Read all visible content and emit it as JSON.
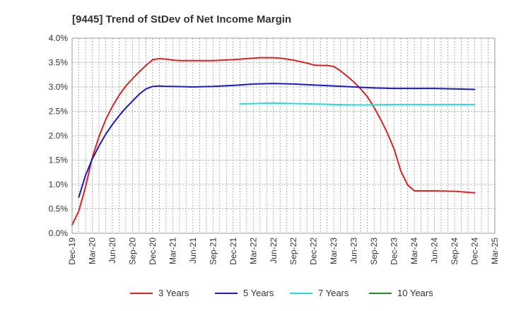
{
  "chart_data": {
    "type": "line",
    "title": "[9445]  Trend of StDev of Net Income Margin",
    "xlabel": "",
    "ylabel": "",
    "x_ticks": [
      "Dec-19",
      "Mar-20",
      "Jun-20",
      "Sep-20",
      "Dec-20",
      "Mar-21",
      "Jun-21",
      "Sep-21",
      "Dec-21",
      "Mar-22",
      "Jun-22",
      "Sep-22",
      "Dec-22",
      "Mar-23",
      "Jun-23",
      "Sep-23",
      "Dec-23",
      "Mar-24",
      "Jun-24",
      "Sep-24",
      "Dec-24",
      "Mar-25"
    ],
    "y_ticks": [
      "0.0%",
      "0.5%",
      "1.0%",
      "1.5%",
      "2.0%",
      "2.5%",
      "3.0%",
      "3.5%",
      "4.0%"
    ],
    "ylim": [
      0,
      4.0
    ],
    "grid": true,
    "legend_position": "bottom",
    "series": [
      {
        "name": "3 Years",
        "color": "#dd2222",
        "x": [
          "Dec-19",
          "Jan-20",
          "Feb-20",
          "Mar-20",
          "Apr-20",
          "May-20",
          "Jun-20",
          "Jul-20",
          "Aug-20",
          "Sep-20",
          "Oct-20",
          "Nov-20",
          "Dec-20",
          "Jan-21",
          "Feb-21",
          "Mar-21",
          "Apr-21",
          "May-21",
          "Jun-21",
          "Sep-21",
          "Dec-21",
          "Mar-22",
          "Apr-22",
          "May-22",
          "Jun-22",
          "Jul-22",
          "Aug-22",
          "Sep-22",
          "Oct-22",
          "Nov-22",
          "Dec-22",
          "Jan-23",
          "Feb-23",
          "Mar-23",
          "Apr-23",
          "May-23",
          "Jun-23",
          "Jul-23",
          "Aug-23",
          "Sep-23",
          "Oct-23",
          "Nov-23",
          "Dec-23",
          "Jan-24",
          "Feb-24",
          "Mar-24",
          "Jun-24",
          "Sep-24",
          "Dec-24"
        ],
        "values": [
          0.17,
          0.46,
          0.95,
          1.55,
          1.98,
          2.33,
          2.6,
          2.83,
          3.02,
          3.17,
          3.31,
          3.44,
          3.56,
          3.58,
          3.57,
          3.55,
          3.54,
          3.54,
          3.54,
          3.54,
          3.56,
          3.59,
          3.6,
          3.6,
          3.6,
          3.59,
          3.57,
          3.55,
          3.52,
          3.49,
          3.45,
          3.44,
          3.44,
          3.42,
          3.33,
          3.22,
          3.1,
          2.96,
          2.8,
          2.58,
          2.33,
          2.05,
          1.72,
          1.27,
          0.99,
          0.87,
          0.87,
          0.86,
          0.83
        ]
      },
      {
        "name": "5 Years",
        "color": "#1a1acc",
        "x": [
          "Jan-20",
          "Feb-20",
          "Mar-20",
          "Apr-20",
          "May-20",
          "Jun-20",
          "Jul-20",
          "Aug-20",
          "Sep-20",
          "Oct-20",
          "Nov-20",
          "Dec-20",
          "Jan-21",
          "Feb-21",
          "Mar-21",
          "Jun-21",
          "Sep-21",
          "Dec-21",
          "Mar-22",
          "Jun-22",
          "Sep-22",
          "Dec-22",
          "Mar-23",
          "Jun-23",
          "Sep-23",
          "Dec-23",
          "Mar-24",
          "Jun-24",
          "Sep-24",
          "Dec-24"
        ],
        "values": [
          0.74,
          1.19,
          1.52,
          1.79,
          2.03,
          2.23,
          2.41,
          2.57,
          2.71,
          2.85,
          2.96,
          3.01,
          3.02,
          3.01,
          3.01,
          3.0,
          3.01,
          3.03,
          3.06,
          3.07,
          3.06,
          3.04,
          3.02,
          3.0,
          2.98,
          2.97,
          2.97,
          2.97,
          2.96,
          2.95
        ]
      },
      {
        "name": "7 Years",
        "color": "#22dddd",
        "x": [
          "Jan-22",
          "Mar-22",
          "Jun-22",
          "Sep-22",
          "Dec-22",
          "Mar-23",
          "Jun-23",
          "Sep-23",
          "Dec-23",
          "Mar-24",
          "Jun-24",
          "Sep-24",
          "Dec-24"
        ],
        "values": [
          2.65,
          2.66,
          2.67,
          2.66,
          2.65,
          2.64,
          2.63,
          2.63,
          2.64,
          2.64,
          2.64,
          2.64,
          2.64
        ]
      },
      {
        "name": "10 Years",
        "color": "#228b22",
        "x": [],
        "values": []
      }
    ]
  }
}
